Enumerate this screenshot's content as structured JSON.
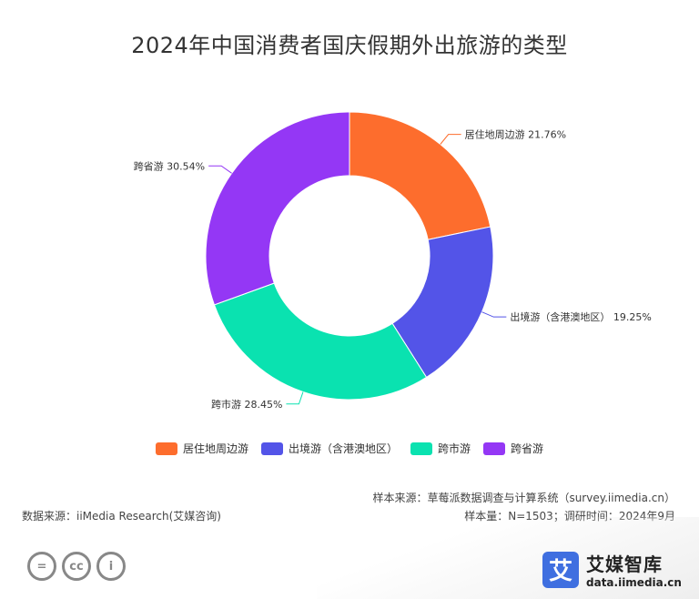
{
  "title": "2024年中国消费者国庆假期外出旅游的类型",
  "chart_data": {
    "type": "pie",
    "donut": true,
    "title": "2024年中国消费者国庆假期外出旅游的类型",
    "categories": [
      "居住地周边游",
      "出境游（含港澳地区）",
      "跨市游",
      "跨省游"
    ],
    "values": [
      21.76,
      19.25,
      28.45,
      30.54
    ],
    "unit": "%",
    "data_labels": [
      "居住地周边游 21.76%",
      "出境游（含港澳地区） 19.25%",
      "跨市游 28.45%",
      "跨省游 30.54%"
    ],
    "colors": [
      "#fd6d2d",
      "#5354e8",
      "#0ae2b0",
      "#9437f5"
    ],
    "legend": "bottom"
  },
  "legend": {
    "items": [
      {
        "label": "居住地周边游",
        "color": "#fd6d2d"
      },
      {
        "label": "出境游（含港澳地区）",
        "color": "#5354e8"
      },
      {
        "label": "跨市游",
        "color": "#0ae2b0"
      },
      {
        "label": "跨省游",
        "color": "#9437f5"
      }
    ]
  },
  "footer": {
    "source": "数据来源：iiMedia Research(艾媒咨询)",
    "sample_source": "样本来源：草莓派数据调查与计算系统（survey.iimedia.cn）",
    "sample_info": "样本量：N=1503；调研时间：2024年9月"
  },
  "license_icons": [
    "equals-icon",
    "cc-icon",
    "person-icon"
  ],
  "license_glyphs": {
    "equals": "=",
    "cc": "cc",
    "person": "i"
  },
  "brand": {
    "icon": "艾",
    "name": "艾媒智库",
    "url": "data.iimedia.cn",
    "color": "#3f6fe0"
  }
}
